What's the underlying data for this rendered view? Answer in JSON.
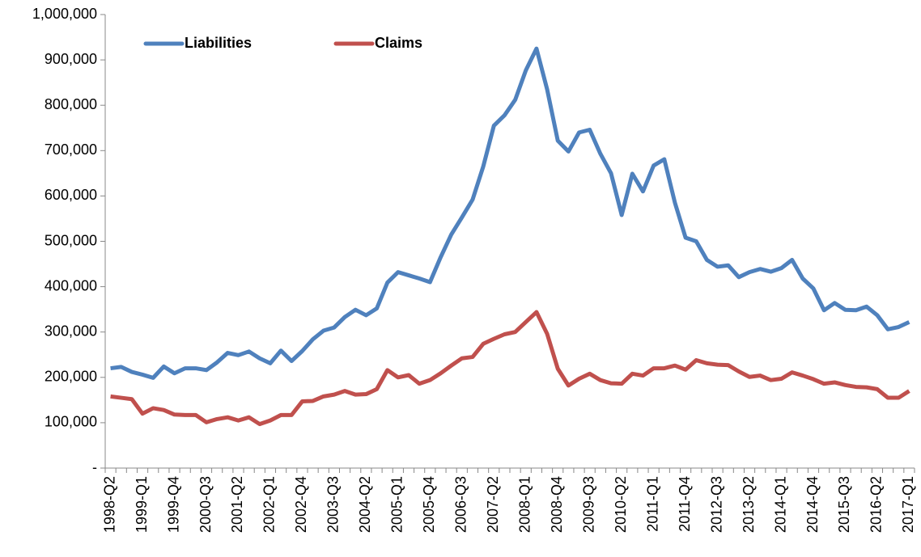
{
  "chart_data": {
    "type": "line",
    "categories": [
      "1998-Q2",
      null,
      null,
      "1999-Q1",
      null,
      null,
      "1999-Q4",
      null,
      null,
      "2000-Q3",
      null,
      null,
      "2001-Q2",
      null,
      null,
      "2002-Q1",
      null,
      null,
      "2002-Q4",
      null,
      null,
      "2003-Q3",
      null,
      null,
      "2004-Q2",
      null,
      null,
      "2005-Q1",
      null,
      null,
      "2005-Q4",
      null,
      null,
      "2006-Q3",
      null,
      null,
      "2007-Q2",
      null,
      null,
      "2008-Q1",
      null,
      null,
      "2008-Q4",
      null,
      null,
      "2009-Q3",
      null,
      null,
      "2010-Q2",
      null,
      null,
      "2011-Q1",
      null,
      null,
      "2011-Q4",
      null,
      null,
      "2012-Q3",
      null,
      null,
      "2013-Q2",
      null,
      null,
      "2014-Q1",
      null,
      null,
      "2014-Q4",
      null,
      null,
      "2015-Q3",
      null,
      null,
      "2016-Q2",
      null,
      null,
      "2017-Q1"
    ],
    "series": [
      {
        "name": "Liabilities",
        "color": "#4f81bd",
        "values": [
          220000,
          223000,
          212000,
          206000,
          199000,
          224000,
          209000,
          220000,
          220000,
          216000,
          233000,
          254000,
          249000,
          257000,
          242000,
          231000,
          259000,
          236000,
          258000,
          284000,
          303000,
          310000,
          333000,
          349000,
          337000,
          352000,
          409000,
          432000,
          425000,
          418000,
          410000,
          465000,
          515000,
          553000,
          592000,
          665000,
          755000,
          778000,
          812000,
          877000,
          925000,
          835000,
          722000,
          698000,
          740000,
          746000,
          693000,
          650000,
          558000,
          649000,
          610000,
          667000,
          681000,
          585000,
          508000,
          500000,
          459000,
          444000,
          447000,
          421000,
          432000,
          439000,
          433000,
          441000,
          459000,
          418000,
          396000,
          348000,
          364000,
          349000,
          348000,
          356000,
          337000,
          306000,
          311000,
          322000
        ]
      },
      {
        "name": "Claims",
        "color": "#c0504d",
        "values": [
          158000,
          155000,
          152000,
          120000,
          132000,
          128000,
          118000,
          117000,
          117000,
          101000,
          108000,
          112000,
          105000,
          112000,
          97000,
          105000,
          117000,
          117000,
          147000,
          148000,
          158000,
          162000,
          170000,
          162000,
          163000,
          174000,
          216000,
          200000,
          205000,
          186000,
          194000,
          209000,
          226000,
          242000,
          245000,
          274000,
          285000,
          295000,
          300000,
          322000,
          344000,
          296000,
          219000,
          182000,
          197000,
          208000,
          194000,
          187000,
          186000,
          208000,
          204000,
          220000,
          220000,
          226000,
          217000,
          238000,
          231000,
          228000,
          227000,
          213000,
          201000,
          204000,
          194000,
          197000,
          211000,
          204000,
          196000,
          186000,
          189000,
          183000,
          179000,
          178000,
          174000,
          155000,
          155000,
          170000
        ]
      }
    ],
    "ylim": [
      0,
      1000000
    ],
    "yticks": [
      {
        "value": 0,
        "label": "-"
      },
      {
        "value": 100000,
        "label": "100,000"
      },
      {
        "value": 200000,
        "label": "200,000"
      },
      {
        "value": 300000,
        "label": "300,000"
      },
      {
        "value": 400000,
        "label": "400,000"
      },
      {
        "value": 500000,
        "label": "500,000"
      },
      {
        "value": 600000,
        "label": "600,000"
      },
      {
        "value": 700000,
        "label": "700,000"
      },
      {
        "value": 800000,
        "label": "800,000"
      },
      {
        "value": 900000,
        "label": "900,000"
      },
      {
        "value": 1000000,
        "label": "1,000,000"
      }
    ],
    "grid": false,
    "legend": "top-left"
  }
}
